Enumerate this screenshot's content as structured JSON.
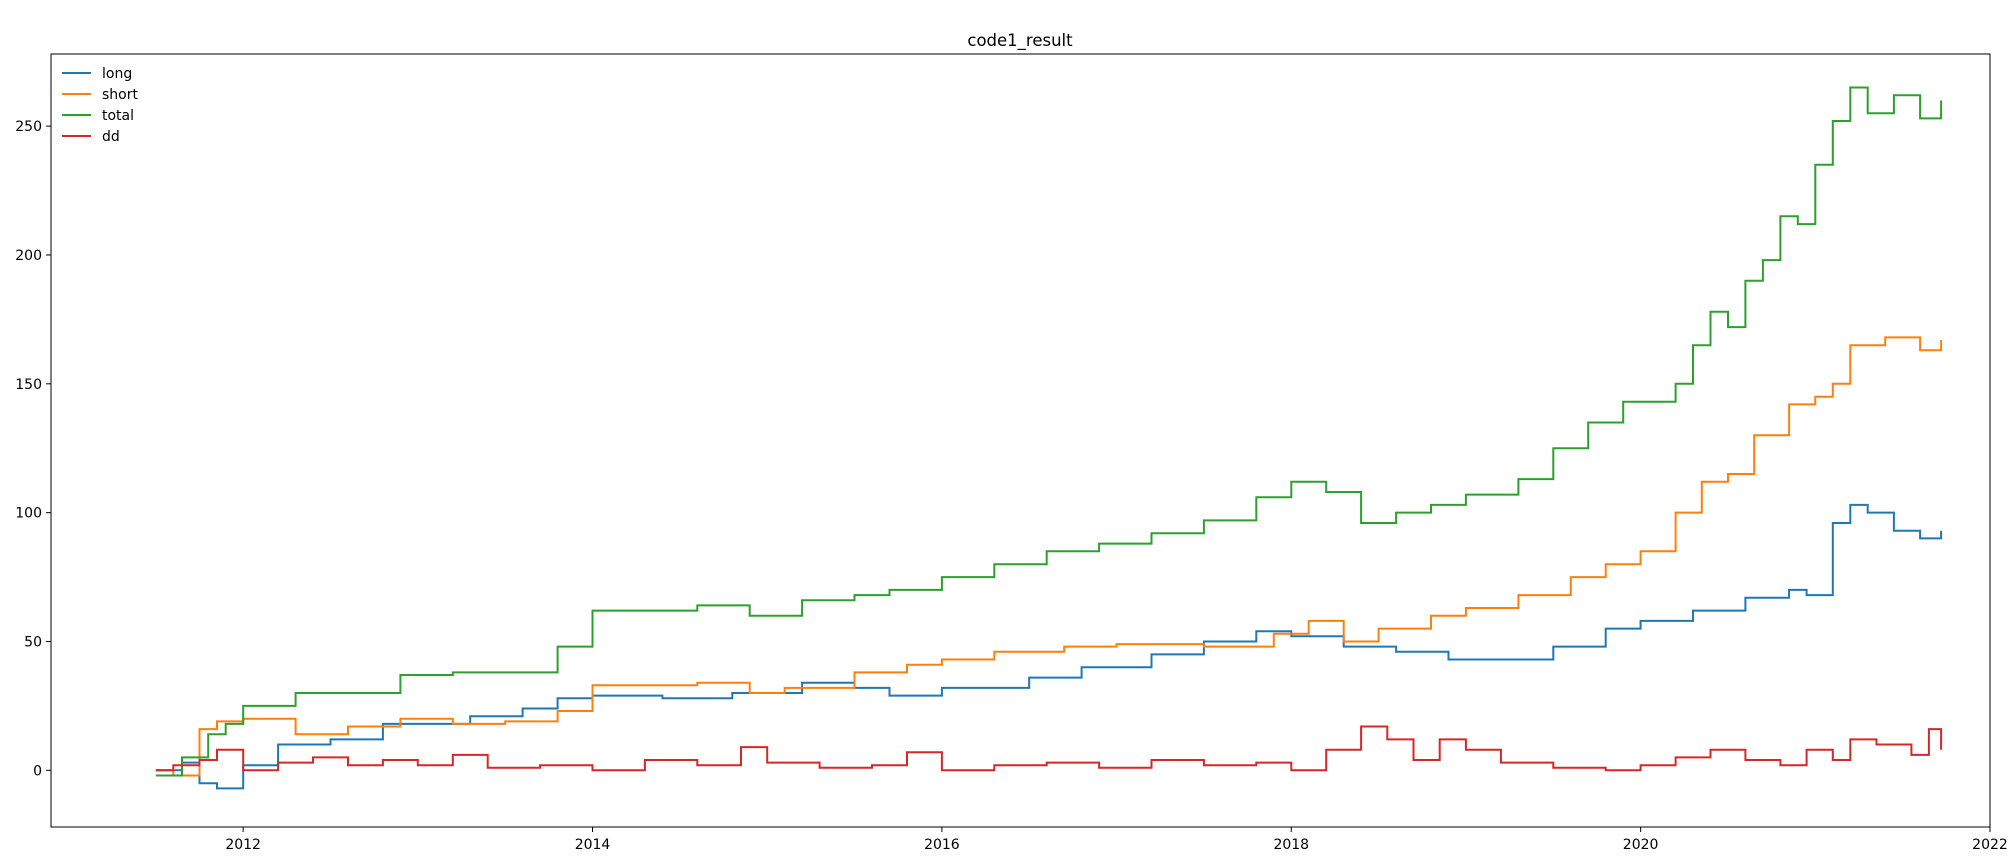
{
  "chart_data": {
    "type": "line",
    "title": "code1_result",
    "xlabel": "",
    "ylabel": "",
    "xlim": [
      2010.9,
      2022.0
    ],
    "ylim": [
      -22,
      278
    ],
    "x_ticks": [
      2012,
      2014,
      2016,
      2018,
      2020,
      2022
    ],
    "x_tick_labels": [
      "2012",
      "2014",
      "2016",
      "2018",
      "2020",
      "2022"
    ],
    "y_ticks": [
      0,
      50,
      100,
      150,
      200,
      250
    ],
    "y_tick_labels": [
      "0",
      "50",
      "100",
      "150",
      "200",
      "250"
    ],
    "grid": false,
    "legend_position": "top-left",
    "series": [
      {
        "name": "long",
        "color": "#1f77b4",
        "points": [
          [
            2011.5,
            0
          ],
          [
            2011.65,
            3
          ],
          [
            2011.75,
            -5
          ],
          [
            2011.85,
            -7
          ],
          [
            2012.0,
            2
          ],
          [
            2012.2,
            10
          ],
          [
            2012.5,
            12
          ],
          [
            2012.8,
            18
          ],
          [
            2013.0,
            18
          ],
          [
            2013.3,
            21
          ],
          [
            2013.6,
            24
          ],
          [
            2013.8,
            28
          ],
          [
            2014.0,
            29
          ],
          [
            2014.4,
            28
          ],
          [
            2014.8,
            30
          ],
          [
            2015.2,
            34
          ],
          [
            2015.5,
            32
          ],
          [
            2015.7,
            29
          ],
          [
            2016.0,
            32
          ],
          [
            2016.5,
            36
          ],
          [
            2016.8,
            40
          ],
          [
            2017.2,
            45
          ],
          [
            2017.5,
            50
          ],
          [
            2017.8,
            54
          ],
          [
            2018.0,
            52
          ],
          [
            2018.3,
            48
          ],
          [
            2018.6,
            46
          ],
          [
            2018.9,
            43
          ],
          [
            2019.2,
            43
          ],
          [
            2019.5,
            48
          ],
          [
            2019.8,
            55
          ],
          [
            2020.0,
            58
          ],
          [
            2020.3,
            62
          ],
          [
            2020.6,
            67
          ],
          [
            2020.85,
            70
          ],
          [
            2020.95,
            68
          ],
          [
            2021.1,
            96
          ],
          [
            2021.2,
            103
          ],
          [
            2021.3,
            100
          ],
          [
            2021.45,
            93
          ],
          [
            2021.6,
            90
          ],
          [
            2021.72,
            93
          ]
        ]
      },
      {
        "name": "short",
        "color": "#ff7f0e",
        "points": [
          [
            2011.5,
            0
          ],
          [
            2011.6,
            -2
          ],
          [
            2011.75,
            16
          ],
          [
            2011.85,
            19
          ],
          [
            2012.0,
            20
          ],
          [
            2012.3,
            14
          ],
          [
            2012.6,
            17
          ],
          [
            2012.9,
            20
          ],
          [
            2013.2,
            18
          ],
          [
            2013.5,
            19
          ],
          [
            2013.8,
            23
          ],
          [
            2014.0,
            33
          ],
          [
            2014.3,
            33
          ],
          [
            2014.6,
            34
          ],
          [
            2014.9,
            30
          ],
          [
            2015.1,
            32
          ],
          [
            2015.5,
            38
          ],
          [
            2015.8,
            41
          ],
          [
            2016.0,
            43
          ],
          [
            2016.3,
            46
          ],
          [
            2016.7,
            48
          ],
          [
            2017.0,
            49
          ],
          [
            2017.5,
            48
          ],
          [
            2017.9,
            53
          ],
          [
            2018.1,
            58
          ],
          [
            2018.3,
            50
          ],
          [
            2018.5,
            55
          ],
          [
            2018.8,
            60
          ],
          [
            2019.0,
            63
          ],
          [
            2019.3,
            68
          ],
          [
            2019.6,
            75
          ],
          [
            2019.8,
            80
          ],
          [
            2020.0,
            85
          ],
          [
            2020.1,
            85
          ],
          [
            2020.2,
            100
          ],
          [
            2020.35,
            112
          ],
          [
            2020.5,
            115
          ],
          [
            2020.65,
            130
          ],
          [
            2020.85,
            142
          ],
          [
            2021.0,
            145
          ],
          [
            2021.1,
            150
          ],
          [
            2021.2,
            165
          ],
          [
            2021.4,
            168
          ],
          [
            2021.6,
            163
          ],
          [
            2021.72,
            167
          ]
        ]
      },
      {
        "name": "total",
        "color": "#2ca02c",
        "points": [
          [
            2011.5,
            -2
          ],
          [
            2011.65,
            5
          ],
          [
            2011.8,
            14
          ],
          [
            2011.9,
            18
          ],
          [
            2012.0,
            25
          ],
          [
            2012.3,
            30
          ],
          [
            2012.6,
            30
          ],
          [
            2012.9,
            37
          ],
          [
            2013.2,
            38
          ],
          [
            2013.5,
            38
          ],
          [
            2013.8,
            48
          ],
          [
            2014.0,
            62
          ],
          [
            2014.3,
            62
          ],
          [
            2014.6,
            64
          ],
          [
            2014.9,
            60
          ],
          [
            2015.2,
            66
          ],
          [
            2015.5,
            68
          ],
          [
            2015.7,
            70
          ],
          [
            2016.0,
            75
          ],
          [
            2016.3,
            80
          ],
          [
            2016.6,
            85
          ],
          [
            2016.9,
            88
          ],
          [
            2017.2,
            92
          ],
          [
            2017.5,
            97
          ],
          [
            2017.8,
            106
          ],
          [
            2018.0,
            112
          ],
          [
            2018.2,
            108
          ],
          [
            2018.4,
            96
          ],
          [
            2018.6,
            100
          ],
          [
            2018.8,
            103
          ],
          [
            2019.0,
            107
          ],
          [
            2019.3,
            113
          ],
          [
            2019.5,
            125
          ],
          [
            2019.7,
            135
          ],
          [
            2019.9,
            143
          ],
          [
            2020.1,
            143
          ],
          [
            2020.2,
            150
          ],
          [
            2020.3,
            165
          ],
          [
            2020.4,
            178
          ],
          [
            2020.5,
            172
          ],
          [
            2020.6,
            190
          ],
          [
            2020.7,
            198
          ],
          [
            2020.8,
            215
          ],
          [
            2020.9,
            212
          ],
          [
            2021.0,
            235
          ],
          [
            2021.1,
            252
          ],
          [
            2021.2,
            265
          ],
          [
            2021.3,
            255
          ],
          [
            2021.45,
            262
          ],
          [
            2021.6,
            253
          ],
          [
            2021.72,
            260
          ]
        ]
      },
      {
        "name": "dd",
        "color": "#d62728",
        "points": [
          [
            2011.5,
            0
          ],
          [
            2011.6,
            2
          ],
          [
            2011.75,
            4
          ],
          [
            2011.85,
            8
          ],
          [
            2012.0,
            0
          ],
          [
            2012.2,
            3
          ],
          [
            2012.4,
            5
          ],
          [
            2012.6,
            2
          ],
          [
            2012.8,
            4
          ],
          [
            2013.0,
            2
          ],
          [
            2013.2,
            6
          ],
          [
            2013.4,
            1
          ],
          [
            2013.7,
            2
          ],
          [
            2014.0,
            0
          ],
          [
            2014.3,
            4
          ],
          [
            2014.6,
            2
          ],
          [
            2014.85,
            9
          ],
          [
            2015.0,
            3
          ],
          [
            2015.3,
            1
          ],
          [
            2015.6,
            2
          ],
          [
            2015.8,
            7
          ],
          [
            2016.0,
            0
          ],
          [
            2016.3,
            2
          ],
          [
            2016.6,
            3
          ],
          [
            2016.9,
            1
          ],
          [
            2017.2,
            4
          ],
          [
            2017.5,
            2
          ],
          [
            2017.8,
            3
          ],
          [
            2018.0,
            0
          ],
          [
            2018.2,
            8
          ],
          [
            2018.4,
            17
          ],
          [
            2018.55,
            12
          ],
          [
            2018.7,
            4
          ],
          [
            2018.85,
            12
          ],
          [
            2019.0,
            8
          ],
          [
            2019.2,
            3
          ],
          [
            2019.5,
            1
          ],
          [
            2019.8,
            0
          ],
          [
            2020.0,
            2
          ],
          [
            2020.2,
            5
          ],
          [
            2020.4,
            8
          ],
          [
            2020.6,
            4
          ],
          [
            2020.8,
            2
          ],
          [
            2020.95,
            8
          ],
          [
            2021.1,
            4
          ],
          [
            2021.2,
            12
          ],
          [
            2021.35,
            10
          ],
          [
            2021.55,
            6
          ],
          [
            2021.65,
            16
          ],
          [
            2021.72,
            8
          ]
        ]
      }
    ]
  }
}
